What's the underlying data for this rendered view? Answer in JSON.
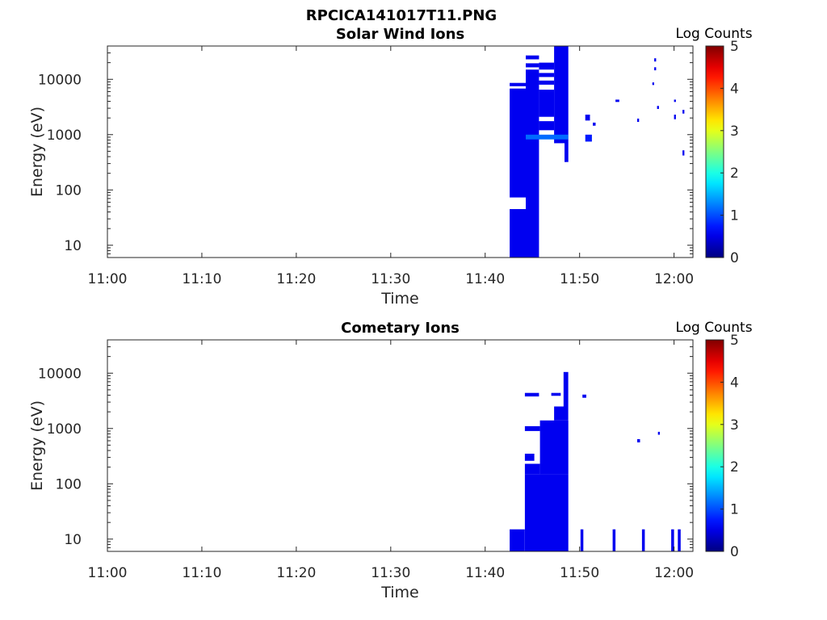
{
  "figure": {
    "title": "RPCICA141017T11.PNG"
  },
  "colors": {
    "block": "#00008b",
    "highlight": "#1e1ef0",
    "axis": "#262626"
  },
  "chart_data": [
    {
      "type": "heatmap",
      "title": "Solar Wind Ions",
      "xlabel": "Time",
      "ylabel": "Energy (eV)",
      "x_ticks": [
        "11:00",
        "11:10",
        "11:20",
        "11:30",
        "11:40",
        "11:50",
        "12:00"
      ],
      "x_range_min": [
        0,
        62
      ],
      "y_scale": "log",
      "y_ticks": [
        10,
        100,
        1000,
        10000
      ],
      "ylim": [
        6,
        40000
      ],
      "colorbar": {
        "label": "Log Counts",
        "range": [
          0,
          5
        ],
        "ticks": [
          0,
          1,
          2,
          3,
          4,
          5
        ]
      },
      "grid": false,
      "data_blocks": [
        {
          "t": [
            42.6,
            44.3
          ],
          "e": [
            6,
            45
          ],
          "v": 0.3
        },
        {
          "t": [
            42.6,
            44.3
          ],
          "e": [
            73,
            6800
          ],
          "v": 0.3
        },
        {
          "t": [
            42.6,
            44.3
          ],
          "e": [
            7500,
            8600
          ],
          "v": 0.3
        },
        {
          "t": [
            44.3,
            45.7
          ],
          "e": [
            6,
            15000
          ],
          "v": 0.3
        },
        {
          "t": [
            44.3,
            45.7
          ],
          "e": [
            16500,
            19500
          ],
          "v": 0.3
        },
        {
          "t": [
            44.3,
            45.7
          ],
          "e": [
            23000,
            27000
          ],
          "v": 0.3
        },
        {
          "t": [
            45.7,
            47.3
          ],
          "e": [
            1200,
            1750
          ],
          "v": 0.3
        },
        {
          "t": [
            45.7,
            47.3
          ],
          "e": [
            2100,
            6500
          ],
          "v": 0.3
        },
        {
          "t": [
            45.7,
            47.3
          ],
          "e": [
            8000,
            9500
          ],
          "v": 0.3
        },
        {
          "t": [
            45.7,
            47.3
          ],
          "e": [
            11000,
            13000
          ],
          "v": 0.3
        },
        {
          "t": [
            45.7,
            47.3
          ],
          "e": [
            15000,
            20000
          ],
          "v": 0.3
        },
        {
          "t": [
            47.3,
            48.4
          ],
          "e": [
            700,
            40000
          ],
          "v": 0.3
        },
        {
          "t": [
            48.4,
            48.8
          ],
          "e": [
            320,
            40000
          ],
          "v": 0.3
        },
        {
          "t": [
            44.3,
            48.8
          ],
          "e": [
            820,
            1000
          ],
          "v": 0.9
        },
        {
          "t": [
            50.6,
            51.1
          ],
          "e": [
            1800,
            2300
          ],
          "v": 0.3
        },
        {
          "t": [
            50.6,
            51.3
          ],
          "e": [
            750,
            1000
          ],
          "v": 0.5
        },
        {
          "t": [
            51.4,
            51.7
          ],
          "e": [
            1450,
            1650
          ],
          "v": 0.3
        },
        {
          "t": [
            53.8,
            54.2
          ],
          "e": [
            3900,
            4300
          ],
          "v": 0.3
        },
        {
          "t": [
            56.1,
            56.3
          ],
          "e": [
            1700,
            1950
          ],
          "v": 0.3
        },
        {
          "t": [
            57.7,
            57.9
          ],
          "e": [
            7900,
            8800
          ],
          "v": 0.3
        },
        {
          "t": [
            57.9,
            58.1
          ],
          "e": [
            14500,
            16500
          ],
          "v": 0.3
        },
        {
          "t": [
            57.9,
            58.1
          ],
          "e": [
            21000,
            24000
          ],
          "v": 0.3
        },
        {
          "t": [
            58.2,
            58.4
          ],
          "e": [
            2900,
            3300
          ],
          "v": 0.3
        },
        {
          "t": [
            60.0,
            60.2
          ],
          "e": [
            1900,
            2300
          ],
          "v": 0.3
        },
        {
          "t": [
            60.0,
            60.2
          ],
          "e": [
            3900,
            4300
          ],
          "v": 0.3
        },
        {
          "t": [
            60.9,
            61.1
          ],
          "e": [
            2400,
            2800
          ],
          "v": 0.3
        },
        {
          "t": [
            60.9,
            61.1
          ],
          "e": [
            420,
            520
          ],
          "v": 0.3
        }
      ]
    },
    {
      "type": "heatmap",
      "title": "Cometary Ions",
      "xlabel": "Time",
      "ylabel": "Energy (eV)",
      "x_ticks": [
        "11:00",
        "11:10",
        "11:20",
        "11:30",
        "11:40",
        "11:50",
        "12:00"
      ],
      "x_range_min": [
        0,
        62
      ],
      "y_scale": "log",
      "y_ticks": [
        10,
        100,
        1000,
        10000
      ],
      "ylim": [
        6,
        40000
      ],
      "colorbar": {
        "label": "Log Counts",
        "range": [
          0,
          5
        ],
        "ticks": [
          0,
          1,
          2,
          3,
          4,
          5
        ]
      },
      "grid": false,
      "data_blocks": [
        {
          "t": [
            42.6,
            44.2
          ],
          "e": [
            6,
            15
          ],
          "v": 0.3
        },
        {
          "t": [
            44.2,
            48.8
          ],
          "e": [
            6,
            150
          ],
          "v": 0.3
        },
        {
          "t": [
            44.2,
            45.8
          ],
          "e": [
            150,
            230
          ],
          "v": 0.3
        },
        {
          "t": [
            44.2,
            45.2
          ],
          "e": [
            260,
            350
          ],
          "v": 0.3
        },
        {
          "t": [
            44.2,
            45.8
          ],
          "e": [
            900,
            1100
          ],
          "v": 0.3
        },
        {
          "t": [
            45.8,
            48.8
          ],
          "e": [
            150,
            1400
          ],
          "v": 0.3
        },
        {
          "t": [
            47.3,
            48.8
          ],
          "e": [
            1400,
            2500
          ],
          "v": 0.3
        },
        {
          "t": [
            44.2,
            45.7
          ],
          "e": [
            3800,
            4400
          ],
          "v": 0.3
        },
        {
          "t": [
            47.0,
            48.0
          ],
          "e": [
            3900,
            4400
          ],
          "v": 0.3
        },
        {
          "t": [
            48.3,
            48.8
          ],
          "e": [
            2500,
            10500
          ],
          "v": 0.3
        },
        {
          "t": [
            50.3,
            50.7
          ],
          "e": [
            3600,
            4100
          ],
          "v": 0.3
        },
        {
          "t": [
            50.1,
            50.4
          ],
          "e": [
            6,
            15
          ],
          "v": 0.3
        },
        {
          "t": [
            53.5,
            53.8
          ],
          "e": [
            6,
            15
          ],
          "v": 0.3
        },
        {
          "t": [
            56.6,
            56.9
          ],
          "e": [
            6,
            15
          ],
          "v": 0.3
        },
        {
          "t": [
            59.7,
            60.0
          ],
          "e": [
            6,
            15
          ],
          "v": 0.3
        },
        {
          "t": [
            60.4,
            60.7
          ],
          "e": [
            6,
            15
          ],
          "v": 0.3
        },
        {
          "t": [
            56.1,
            56.4
          ],
          "e": [
            560,
            640
          ],
          "v": 0.3
        },
        {
          "t": [
            58.3,
            58.5
          ],
          "e": [
            770,
            870
          ],
          "v": 0.3
        }
      ]
    }
  ]
}
